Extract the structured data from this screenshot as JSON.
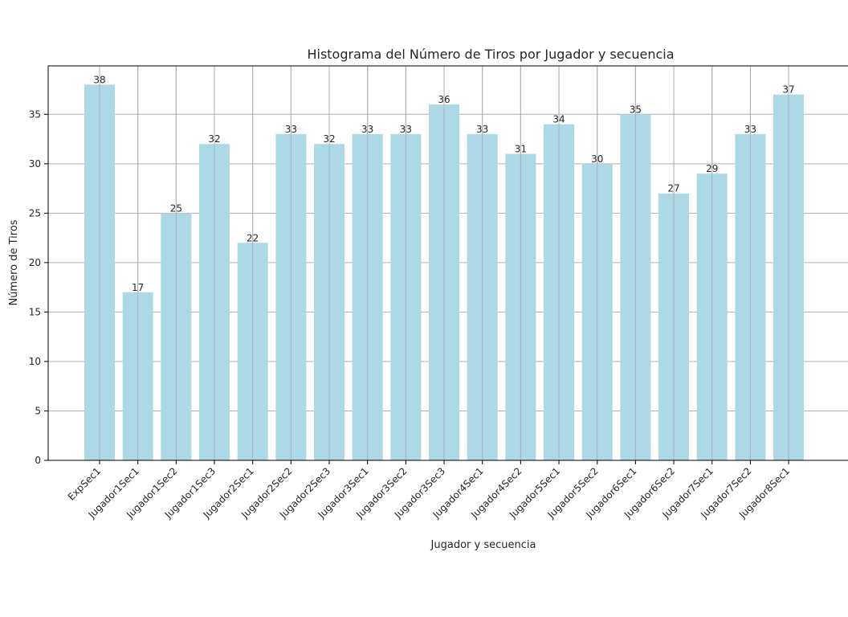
{
  "chart_data": {
    "type": "bar",
    "title": "Histograma del Número de Tiros por Jugador  y secuencia",
    "xlabel": "Jugador  y secuencia",
    "ylabel": "Número de Tiros",
    "categories": [
      "ExpSec1",
      "Jugador1Sec1",
      "Jugador1Sec2",
      "Jugador1Sec3",
      "Jugador2Sec1",
      "Jugador2Sec2",
      "Jugador2Sec3",
      "Jugador3Sec1",
      "Jugador3Sec2",
      "Jugador3Sec3",
      "Jugador4Sec1",
      "Jugador4Sec2",
      "Jugador5Sec1",
      "Jugador5Sec2",
      "Jugador6Sec1",
      "Jugador6Sec2",
      "Jugador7Sec1",
      "Jugador7Sec2",
      "Jugador8Sec1"
    ],
    "values": [
      38,
      17,
      25,
      32,
      22,
      33,
      32,
      33,
      33,
      36,
      33,
      31,
      34,
      30,
      35,
      27,
      29,
      33,
      37
    ],
    "ylim": [
      0,
      39.9
    ],
    "yticks": [
      0,
      5,
      10,
      15,
      20,
      25,
      30,
      35
    ],
    "grid": true,
    "bar_color": "#add8e6",
    "grid_color": "#b0b0b0"
  }
}
